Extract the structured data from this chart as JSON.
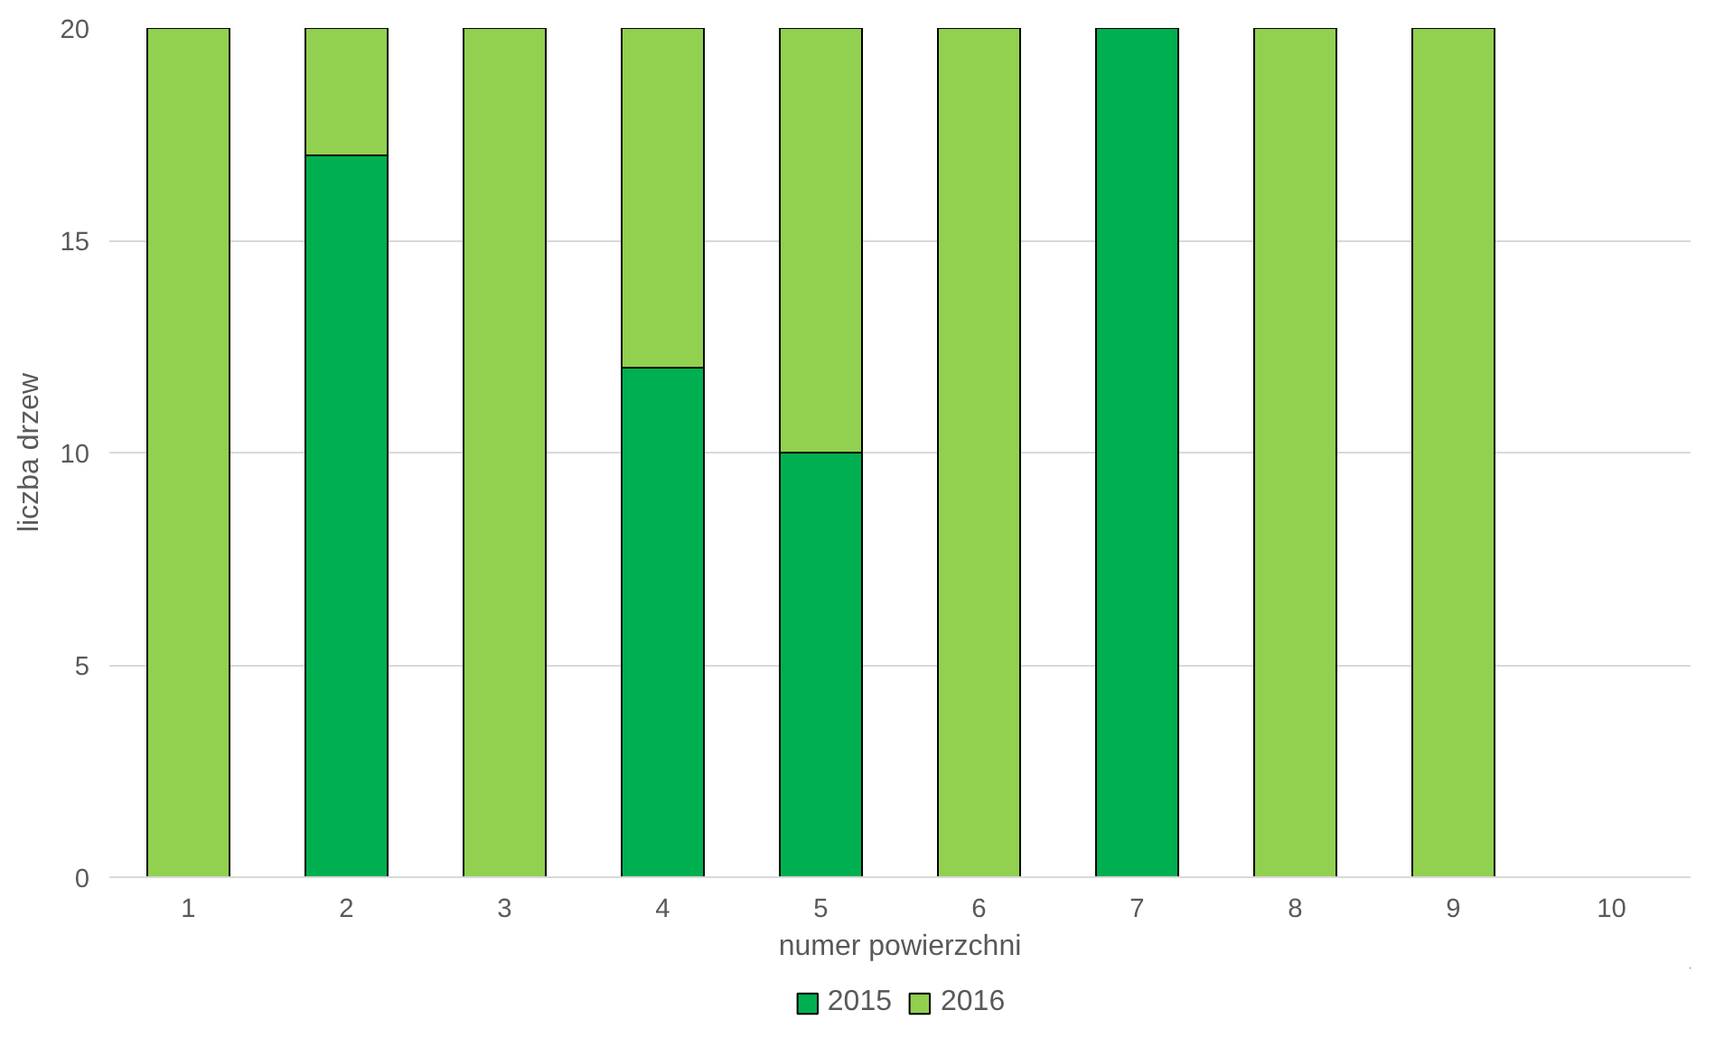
{
  "chart_data": {
    "type": "bar",
    "stacked": true,
    "xlabel": "numer powierzchni",
    "ylabel": "liczba drzew",
    "categories": [
      "1",
      "2",
      "3",
      "4",
      "5",
      "6",
      "7",
      "8",
      "9",
      "10"
    ],
    "series": [
      {
        "name": "2015",
        "color": "#00b050",
        "values": [
          0,
          17,
          0,
          12,
          10,
          0,
          20,
          0,
          0,
          0
        ]
      },
      {
        "name": "2016",
        "color": "#92d050",
        "values": [
          20,
          3,
          20,
          8,
          10,
          20,
          0,
          20,
          20,
          0
        ]
      }
    ],
    "ylim": [
      0,
      20
    ],
    "yticks": [
      0,
      5,
      10,
      15,
      20
    ],
    "grid": "y",
    "legend": "bottom"
  }
}
